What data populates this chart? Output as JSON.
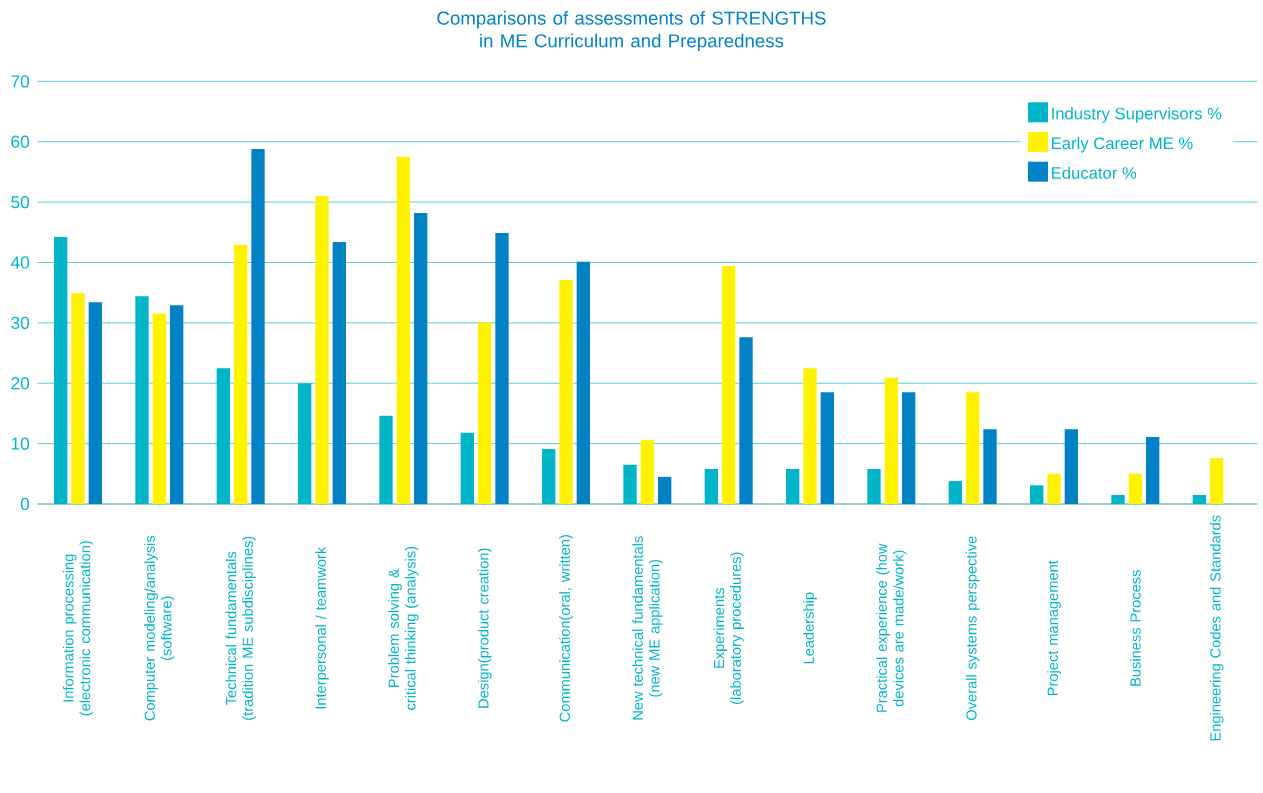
{
  "chart_data": {
    "type": "bar",
    "title": "Comparisons of assessments of STRENGTHS in ME Curriculum and Preparedness",
    "categories": [
      "Information processing (electronic communication)",
      "Computer modeling/analysis (software)",
      "Technical fundamentals (tradition ME subdisciplines)",
      "Interpersonal / teamwork",
      "Problem solving & critical thinking (analysis)",
      "Design(product creation)",
      "Communication(oral, written)",
      "New technical fundamentals (new ME application)",
      "Experiments (laboratory procedures)",
      "Leadership",
      "Practical experience (how devices are made/work)",
      "Overall systems perspective",
      "Project management",
      "Business Process",
      "Engineering Codes and Standards"
    ],
    "series": [
      {
        "name": "Industry Supervisors %",
        "color": "#00b5c8",
        "values": [
          44.2,
          34.4,
          22.5,
          20.0,
          14.6,
          11.8,
          9.1,
          6.5,
          5.8,
          5.8,
          5.8,
          3.8,
          3.1,
          1.5,
          1.5
        ]
      },
      {
        "name": "Early Career ME %",
        "color": "#fff200",
        "values": [
          34.9,
          31.5,
          42.9,
          51.0,
          57.5,
          30.1,
          37.1,
          10.6,
          39.4,
          22.5,
          20.9,
          18.5,
          5.0,
          5.0,
          7.6
        ]
      },
      {
        "name": "Educator %",
        "color": "#0082c4",
        "values": [
          33.4,
          32.9,
          58.8,
          43.4,
          48.2,
          44.9,
          40.1,
          4.5,
          27.6,
          18.5,
          18.5,
          12.4,
          12.4,
          11.1,
          null
        ]
      }
    ],
    "ylim": [
      0,
      70
    ],
    "yticks": [
      0,
      10,
      20,
      30,
      40,
      50,
      60,
      70
    ],
    "grid": "y",
    "legend": "top right"
  }
}
